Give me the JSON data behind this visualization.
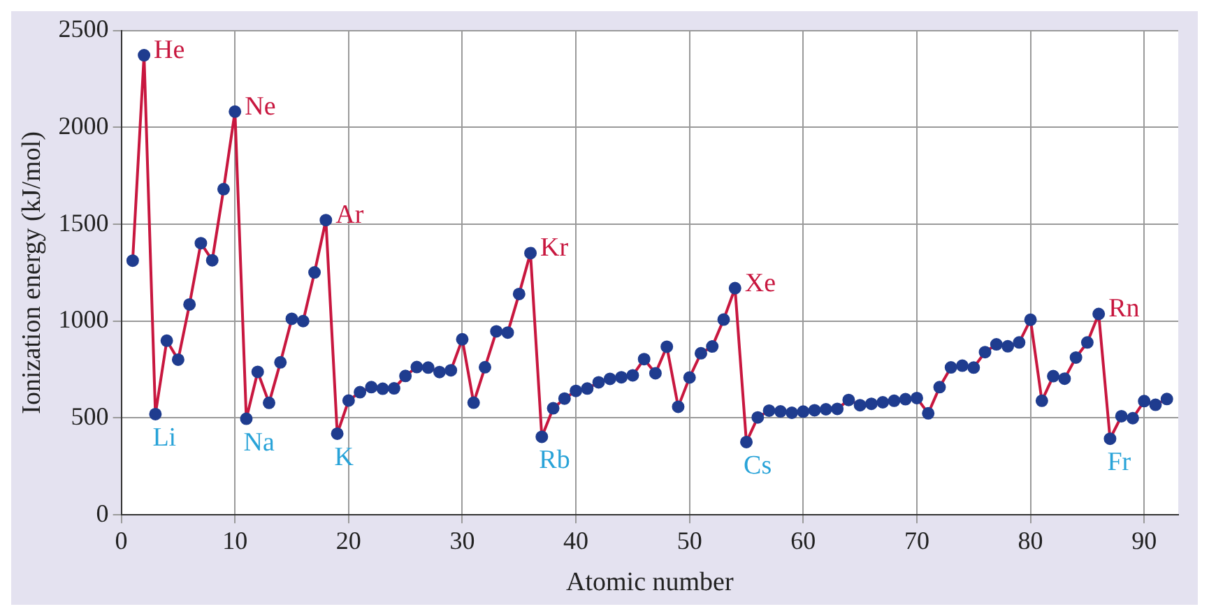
{
  "chart_data": {
    "type": "line",
    "xlabel": "Atomic number",
    "ylabel": "Ionization energy (kJ/mol)",
    "x": [
      1,
      2,
      3,
      4,
      5,
      6,
      7,
      8,
      9,
      10,
      11,
      12,
      13,
      14,
      15,
      16,
      17,
      18,
      19,
      20,
      21,
      22,
      23,
      24,
      25,
      26,
      27,
      28,
      29,
      30,
      31,
      32,
      33,
      34,
      35,
      36,
      37,
      38,
      39,
      40,
      41,
      42,
      43,
      44,
      45,
      46,
      47,
      48,
      49,
      50,
      51,
      52,
      53,
      54,
      55,
      56,
      57,
      58,
      59,
      60,
      61,
      62,
      63,
      64,
      65,
      66,
      67,
      68,
      69,
      70,
      71,
      72,
      73,
      74,
      75,
      76,
      77,
      78,
      79,
      80,
      81,
      82,
      83,
      84,
      85,
      86,
      87,
      88,
      89,
      90,
      91,
      92
    ],
    "series": [
      {
        "color": "#c8173f",
        "values": [
          1312,
          2372,
          520,
          899,
          801,
          1086,
          1402,
          1314,
          1681,
          2081,
          496,
          738,
          578,
          787,
          1012,
          1000,
          1251,
          1521,
          419,
          590,
          633,
          659,
          651,
          653,
          717,
          763,
          760,
          737,
          746,
          906,
          579,
          762,
          947,
          941,
          1140,
          1351,
          403,
          550,
          600,
          640,
          652,
          684,
          702,
          710,
          720,
          804,
          731,
          868,
          558,
          709,
          834,
          869,
          1008,
          1170,
          376,
          503,
          538,
          534,
          527,
          533,
          540,
          545,
          547,
          593,
          566,
          573,
          581,
          589,
          597,
          603,
          524,
          659,
          761,
          770,
          760,
          840,
          880,
          870,
          890,
          1007,
          589,
          716,
          703,
          812,
          890,
          1037,
          393,
          509,
          499,
          587,
          568,
          598
        ]
      }
    ],
    "xlim": [
      0,
      93
    ],
    "xticks": [
      0,
      10,
      20,
      30,
      40,
      50,
      60,
      70,
      80,
      90
    ],
    "ylim": [
      0,
      2500
    ],
    "yticks": [
      0,
      500,
      1000,
      1500,
      2000,
      2500
    ],
    "grid": true,
    "legend": false,
    "marker": "circle",
    "line_style": "solid",
    "annotations": [
      {
        "text": "He",
        "x": 2,
        "y": 2372
      },
      {
        "text": "Ne",
        "x": 10,
        "y": 2081
      },
      {
        "text": "Ar",
        "x": 18,
        "y": 1521
      },
      {
        "text": "Kr",
        "x": 36,
        "y": 1351
      },
      {
        "text": "Xe",
        "x": 54,
        "y": 1170
      },
      {
        "text": "Rn",
        "x": 86,
        "y": 1037
      },
      {
        "text": "Li",
        "x": 3,
        "y": 520
      },
      {
        "text": "Na",
        "x": 11,
        "y": 496
      },
      {
        "text": "K",
        "x": 19,
        "y": 419
      },
      {
        "text": "Rb",
        "x": 37,
        "y": 403
      },
      {
        "text": "Cs",
        "x": 55,
        "y": 376
      },
      {
        "text": "Fr",
        "x": 87,
        "y": 393
      }
    ]
  }
}
